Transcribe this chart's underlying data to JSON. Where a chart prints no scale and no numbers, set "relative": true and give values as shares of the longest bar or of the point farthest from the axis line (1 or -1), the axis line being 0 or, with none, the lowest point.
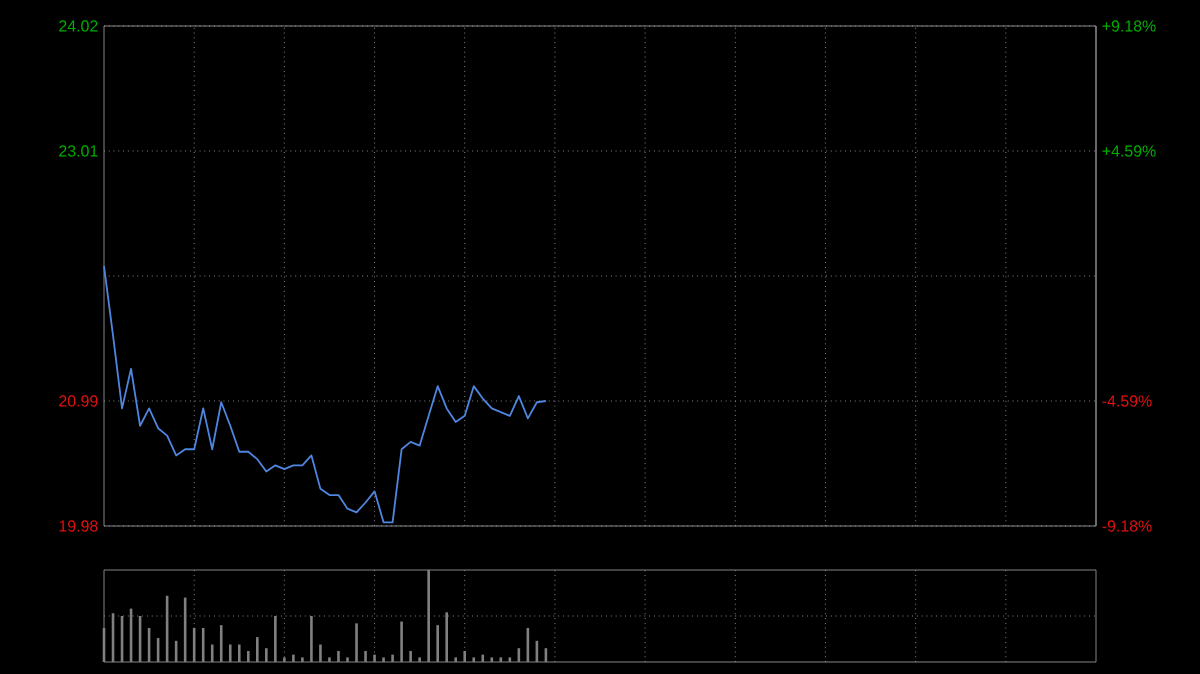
{
  "chart_data": [
    {
      "type": "line",
      "categories": [
        null,
        null,
        null,
        null,
        null,
        null,
        null,
        null,
        null,
        null,
        null,
        null,
        null,
        null,
        null,
        null,
        null,
        null,
        null,
        null,
        null,
        null,
        null,
        null,
        null,
        null,
        null,
        null,
        null,
        null,
        null,
        null,
        null,
        null,
        null,
        null,
        null,
        null,
        null,
        null,
        null,
        null,
        null,
        null,
        null,
        null,
        null,
        null,
        null,
        null,
        null,
        null,
        null,
        null,
        null,
        null,
        null,
        null,
        null,
        null,
        null,
        null,
        null,
        null,
        null,
        null,
        null,
        null,
        null,
        null,
        null,
        null,
        null,
        null,
        null,
        null,
        null,
        null,
        null,
        null,
        null,
        null,
        null,
        null,
        null,
        null,
        null,
        null,
        null,
        null,
        null,
        null,
        null,
        null,
        null,
        null,
        null,
        null,
        null,
        null,
        null,
        null,
        null,
        null,
        null,
        null,
        null,
        null,
        null,
        null,
        null
      ],
      "series": [
        {
          "color": "#4f86e0",
          "values": [
            22.08,
            21.52,
            20.93,
            21.25,
            20.79,
            20.93,
            20.77,
            20.71,
            20.55,
            20.6,
            20.6,
            20.93,
            20.6,
            20.98,
            20.79,
            20.58,
            20.58,
            20.52,
            20.42,
            20.47,
            20.44,
            20.47,
            20.47,
            20.55,
            20.28,
            20.23,
            20.23,
            20.12,
            20.09,
            20.17,
            20.26,
            20.01,
            20.01,
            20.6,
            20.66,
            20.63,
            20.87,
            21.11,
            20.93,
            20.82,
            20.87,
            21.11,
            21.01,
            20.93,
            20.9,
            20.87,
            21.03,
            20.85,
            20.98,
            20.99,
            null,
            null,
            null,
            null,
            null,
            null,
            null,
            null,
            null,
            null,
            null,
            null,
            null,
            null,
            null,
            null,
            null,
            null,
            null,
            null,
            null,
            null,
            null,
            null,
            null,
            null,
            null,
            null,
            null,
            null,
            null,
            null,
            null,
            null,
            null,
            null,
            null,
            null,
            null,
            null,
            null,
            null,
            null,
            null,
            null,
            null,
            null,
            null,
            null,
            null,
            null,
            null,
            null,
            null,
            null,
            null,
            null,
            null,
            null,
            null,
            null
          ]
        }
      ],
      "ylim": [
        19.98,
        24.02
      ],
      "yticks": [
        19.98,
        20.99,
        {
          "value": 22.0,
          "label": null
        },
        23.01,
        24.02
      ],
      "y2lim": [
        -9.18,
        9.18
      ],
      "y2ticks": [
        {
          "value": -9.18,
          "label": "-9.18%"
        },
        {
          "value": -4.59,
          "label": "-4.59%"
        },
        {
          "value": 4.59,
          "label": "+4.59%"
        },
        {
          "value": 9.18,
          "label": "+9.18%"
        }
      ],
      "grid": true,
      "tick_labels": "y"
    },
    {
      "type": "bar",
      "relative": true,
      "categories": [
        null,
        null,
        null,
        null,
        null,
        null,
        null,
        null,
        null,
        null,
        null,
        null,
        null,
        null,
        null,
        null,
        null,
        null,
        null,
        null,
        null,
        null,
        null,
        null,
        null,
        null,
        null,
        null,
        null,
        null,
        null,
        null,
        null,
        null,
        null,
        null,
        null,
        null,
        null,
        null,
        null,
        null,
        null,
        null,
        null,
        null,
        null,
        null,
        null,
        null,
        null,
        null,
        null,
        null,
        null,
        null,
        null,
        null,
        null,
        null,
        null,
        null,
        null,
        null,
        null,
        null,
        null,
        null,
        null,
        null,
        null,
        null,
        null,
        null,
        null,
        null,
        null,
        null,
        null,
        null,
        null,
        null,
        null,
        null,
        null,
        null,
        null,
        null,
        null,
        null,
        null,
        null,
        null,
        null,
        null,
        null,
        null,
        null,
        null,
        null,
        null,
        null,
        null,
        null,
        null,
        null,
        null,
        null,
        null,
        null,
        null
      ],
      "series": [
        {
          "color": "#808080",
          "values": [
            0.37,
            0.53,
            0.5,
            0.58,
            0.5,
            0.37,
            0.26,
            0.72,
            0.23,
            0.7,
            0.37,
            0.37,
            0.19,
            0.4,
            0.19,
            0.19,
            0.12,
            0.27,
            0.15,
            0.5,
            0.05,
            0.08,
            0.05,
            0.5,
            0.19,
            0.05,
            0.12,
            0.05,
            0.42,
            0.12,
            0.08,
            0.05,
            0.08,
            0.44,
            0.12,
            0.05,
            1,
            0.4,
            0.54,
            0.05,
            0.12,
            0.05,
            0.08,
            0.05,
            0.05,
            0.05,
            0.15,
            0.37,
            0.23,
            0.15,
            null,
            null,
            null,
            null,
            null,
            null,
            null,
            null,
            null,
            null,
            null,
            null,
            null,
            null,
            null,
            null,
            null,
            null,
            null,
            null,
            null,
            null,
            null,
            null,
            null,
            null,
            null,
            null,
            null,
            null,
            null,
            null,
            null,
            null,
            null,
            null,
            null,
            null,
            null,
            null,
            null,
            null,
            null,
            null,
            null,
            null,
            null,
            null,
            null,
            null,
            null,
            null,
            null,
            null,
            null,
            null,
            null,
            null,
            null,
            null,
            null
          ]
        }
      ],
      "grid": true,
      "tick_labels": false
    }
  ]
}
